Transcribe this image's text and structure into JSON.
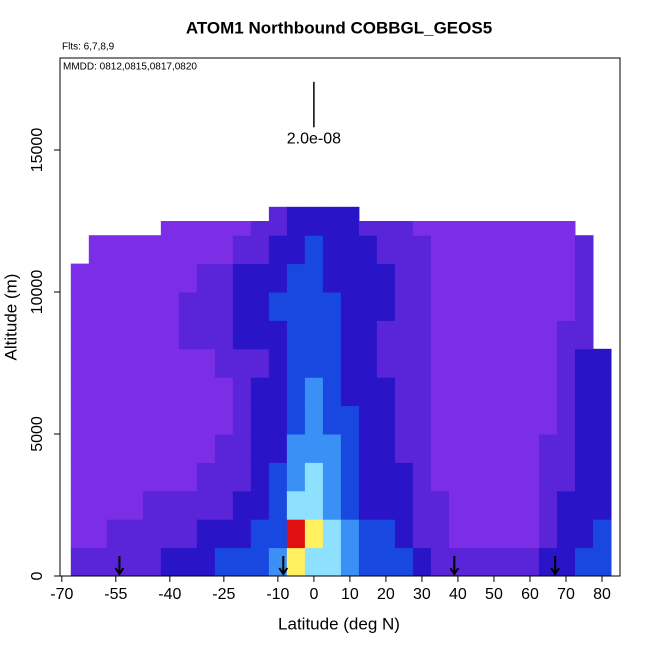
{
  "chart_data": {
    "type": "heatmap",
    "title": "ATOM1 Northbound COBBGL_GEOS5",
    "flights_label": "Flts: 6,7,8,9",
    "dates_label": "MMDD: 0812,0815,0817,0820",
    "scale_label": "2.0e-08",
    "xlabel": "Latitude (deg N)",
    "ylabel": "Altitude (m)",
    "xlim": [
      -70.5,
      85
    ],
    "ylim": [
      0,
      18240
    ],
    "xticks": [
      -70,
      -55,
      -40,
      -25,
      -10,
      0,
      10,
      20,
      30,
      40,
      50,
      60,
      70,
      80
    ],
    "yticks": [
      0,
      5000,
      10000,
      15000
    ],
    "colormap": [
      "#7c2ee6",
      "#5a24d8",
      "#2a14c8",
      "#1848e0",
      "#3a90f5",
      "#8ee0ff",
      "#fff060",
      "#e01010"
    ],
    "bin_width": 5,
    "band_height": 1000,
    "columns": [
      {
        "lat": -65,
        "top": 11000,
        "values": [
          1,
          0,
          0,
          0,
          0,
          0,
          0,
          0,
          0,
          0,
          0
        ]
      },
      {
        "lat": -60,
        "top": 12000,
        "values": [
          1,
          0,
          0,
          0,
          0,
          0,
          0,
          0,
          0,
          0,
          0,
          0
        ]
      },
      {
        "lat": -55,
        "top": 12000,
        "values": [
          1,
          1,
          0,
          0,
          0,
          0,
          0,
          0,
          0,
          0,
          0,
          0
        ]
      },
      {
        "lat": -50,
        "top": 12000,
        "values": [
          1,
          1,
          0,
          0,
          0,
          0,
          0,
          0,
          0,
          0,
          0,
          0
        ]
      },
      {
        "lat": -45,
        "top": 12000,
        "values": [
          1,
          1,
          1,
          0,
          0,
          0,
          0,
          0,
          0,
          0,
          0,
          0
        ]
      },
      {
        "lat": -40,
        "top": 12500,
        "values": [
          2,
          1,
          1,
          0,
          0,
          0,
          0,
          0,
          0,
          0,
          0,
          0,
          0
        ]
      },
      {
        "lat": -35,
        "top": 12500,
        "values": [
          2,
          1,
          1,
          0,
          0,
          0,
          0,
          0,
          1,
          1,
          0,
          0,
          0
        ]
      },
      {
        "lat": -30,
        "top": 12500,
        "values": [
          2,
          2,
          1,
          1,
          0,
          0,
          0,
          0,
          1,
          1,
          1,
          0,
          0
        ]
      },
      {
        "lat": -25,
        "top": 12500,
        "values": [
          3,
          2,
          1,
          1,
          1,
          0,
          0,
          1,
          1,
          1,
          1,
          0,
          0
        ]
      },
      {
        "lat": -20,
        "top": 12500,
        "values": [
          3,
          2,
          2,
          1,
          1,
          1,
          1,
          1,
          2,
          2,
          2,
          1,
          0
        ]
      },
      {
        "lat": -15,
        "top": 12500,
        "values": [
          3,
          3,
          2,
          2,
          2,
          2,
          2,
          1,
          2,
          2,
          2,
          1,
          1
        ]
      },
      {
        "lat": -10,
        "top": 13000,
        "values": [
          4,
          3,
          3,
          3,
          2,
          2,
          2,
          2,
          2,
          3,
          2,
          2,
          1
        ]
      },
      {
        "lat": -5,
        "top": 13000,
        "values": [
          6,
          7,
          5,
          4,
          4,
          3,
          3,
          3,
          3,
          3,
          3,
          2,
          2
        ]
      },
      {
        "lat": 0,
        "top": 13000,
        "values": [
          5,
          6,
          5,
          5,
          4,
          4,
          4,
          3,
          3,
          3,
          3,
          3,
          2
        ]
      },
      {
        "lat": 5,
        "top": 13000,
        "values": [
          5,
          5,
          4,
          4,
          4,
          3,
          3,
          3,
          3,
          3,
          2,
          2,
          2
        ]
      },
      {
        "lat": 10,
        "top": 13000,
        "values": [
          4,
          4,
          3,
          3,
          3,
          3,
          2,
          2,
          2,
          2,
          2,
          2,
          2
        ]
      },
      {
        "lat": 15,
        "top": 12500,
        "values": [
          3,
          3,
          2,
          2,
          2,
          2,
          2,
          2,
          2,
          2,
          2,
          2,
          1
        ]
      },
      {
        "lat": 20,
        "top": 12500,
        "values": [
          3,
          3,
          2,
          2,
          2,
          2,
          2,
          1,
          1,
          2,
          2,
          1,
          1
        ]
      },
      {
        "lat": 25,
        "top": 12500,
        "values": [
          3,
          2,
          2,
          2,
          1,
          1,
          1,
          1,
          1,
          1,
          1,
          1,
          1
        ]
      },
      {
        "lat": 30,
        "top": 12500,
        "values": [
          2,
          1,
          1,
          1,
          1,
          1,
          1,
          1,
          1,
          1,
          1,
          1,
          0
        ]
      },
      {
        "lat": 35,
        "top": 12500,
        "values": [
          1,
          1,
          1,
          0,
          0,
          0,
          0,
          0,
          0,
          0,
          0,
          0,
          0
        ]
      },
      {
        "lat": 40,
        "top": 12500,
        "values": [
          1,
          0,
          0,
          0,
          0,
          0,
          0,
          0,
          0,
          0,
          0,
          0,
          0
        ]
      },
      {
        "lat": 45,
        "top": 12500,
        "values": [
          1,
          0,
          0,
          0,
          0,
          0,
          0,
          0,
          0,
          0,
          0,
          0,
          0
        ]
      },
      {
        "lat": 50,
        "top": 12500,
        "values": [
          1,
          0,
          0,
          0,
          0,
          0,
          0,
          0,
          0,
          0,
          0,
          0,
          0
        ]
      },
      {
        "lat": 55,
        "top": 12500,
        "values": [
          1,
          0,
          0,
          0,
          0,
          0,
          0,
          0,
          0,
          0,
          0,
          0,
          0
        ]
      },
      {
        "lat": 60,
        "top": 12500,
        "values": [
          1,
          0,
          0,
          0,
          0,
          0,
          0,
          0,
          0,
          0,
          0,
          0,
          0
        ]
      },
      {
        "lat": 65,
        "top": 12500,
        "values": [
          2,
          1,
          1,
          1,
          1,
          0,
          0,
          0,
          0,
          0,
          0,
          0,
          0
        ]
      },
      {
        "lat": 70,
        "top": 12500,
        "values": [
          2,
          2,
          2,
          1,
          1,
          1,
          1,
          1,
          1,
          0,
          0,
          0,
          0
        ]
      },
      {
        "lat": 75,
        "top": 12000,
        "values": [
          3,
          2,
          2,
          2,
          2,
          2,
          2,
          2,
          1,
          1,
          1,
          1
        ]
      },
      {
        "lat": 80,
        "top": 8000,
        "values": [
          3,
          3,
          2,
          2,
          2,
          2,
          2,
          2
        ]
      }
    ],
    "arrows": [
      -54,
      -8.5,
      39,
      67
    ],
    "scale_bar": {
      "lat": 0,
      "bottom": 15800,
      "top": 17400
    }
  }
}
